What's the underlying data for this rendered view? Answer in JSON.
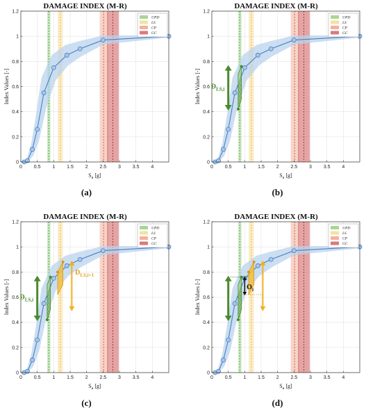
{
  "chart_data": [
    {
      "panel": "(a)",
      "type": "line",
      "title": "DAMAGE INDEX (M-R)",
      "xlabel": "S_a [g]",
      "ylabel": "Index Values [-]",
      "xlim": [
        0,
        4.5
      ],
      "ylim": [
        0,
        1.2
      ],
      "xticks": [
        "0",
        "0.5",
        "1",
        "1.5",
        "2",
        "2.5",
        "3",
        "3.5",
        "4"
      ],
      "yticks": [
        "0",
        "0.2",
        "0.4",
        "0.6",
        "0.8",
        "1",
        "1.2"
      ],
      "grid": true,
      "legend_position": "top-right",
      "series": [
        {
          "x": [
            0.1,
            0.2,
            0.35,
            0.5,
            0.7,
            1.0,
            1.4,
            1.8,
            2.5,
            4.5
          ],
          "y": [
            0.0,
            0.01,
            0.1,
            0.26,
            0.55,
            0.75,
            0.85,
            0.9,
            0.97,
            1.0
          ]
        }
      ],
      "limit_states": [
        {
          "name": "UPD",
          "color": "#8fce7a"
        },
        {
          "name": "LS",
          "color": "#f5d88a"
        },
        {
          "name": "CP",
          "color": "#ef9e86"
        },
        {
          "name": "GC",
          "color": "#cf5a5a"
        }
      ],
      "annotations": []
    },
    {
      "panel": "(b)",
      "type": "line",
      "title": "DAMAGE INDEX (M-R)",
      "xlabel": "S_a [g]",
      "ylabel": "Index Values [-]",
      "xlim": [
        0,
        4.5
      ],
      "ylim": [
        0,
        1.2
      ],
      "xticks": [
        "0",
        "0.5",
        "1",
        "1.5",
        "2",
        "2.5",
        "3",
        "3.5",
        "4"
      ],
      "yticks": [
        "0",
        "0.2",
        "0.4",
        "0.6",
        "0.8",
        "1",
        "1.2"
      ],
      "grid": true,
      "legend_position": "top-right",
      "series": [
        {
          "x": [
            0.1,
            0.2,
            0.35,
            0.5,
            0.7,
            1.0,
            1.4,
            1.8,
            2.5,
            4.5
          ],
          "y": [
            0.0,
            0.01,
            0.1,
            0.26,
            0.55,
            0.75,
            0.85,
            0.9,
            0.97,
            1.0
          ]
        }
      ],
      "limit_states": [
        {
          "name": "UPD",
          "color": "#8fce7a"
        },
        {
          "name": "LS",
          "color": "#f5d88a"
        },
        {
          "name": "CP",
          "color": "#ef9e86"
        },
        {
          "name": "GC",
          "color": "#cf5a5a"
        }
      ],
      "annotations": [
        {
          "text": "D_{LS,i}",
          "color": "#4a8a2e"
        }
      ]
    },
    {
      "panel": "(c)",
      "type": "line",
      "title": "DAMAGE INDEX (M-R)",
      "xlabel": "S_a [g]",
      "ylabel": "Index Values [-]",
      "xlim": [
        0,
        4.5
      ],
      "ylim": [
        0,
        1.2
      ],
      "xticks": [
        "0",
        "0.5",
        "1",
        "1.5",
        "2",
        "2.5",
        "3",
        "3.5",
        "4"
      ],
      "yticks": [
        "0",
        "0.2",
        "0.4",
        "0.6",
        "0.8",
        "1",
        "1.2"
      ],
      "grid": true,
      "legend_position": "top-right",
      "series": [
        {
          "x": [
            0.1,
            0.2,
            0.35,
            0.5,
            0.7,
            1.0,
            1.4,
            1.8,
            2.5,
            4.5
          ],
          "y": [
            0.0,
            0.01,
            0.1,
            0.26,
            0.55,
            0.75,
            0.85,
            0.9,
            0.97,
            1.0
          ]
        }
      ],
      "limit_states": [
        {
          "name": "UPD",
          "color": "#8fce7a"
        },
        {
          "name": "LS",
          "color": "#f5d88a"
        },
        {
          "name": "CP",
          "color": "#ef9e86"
        },
        {
          "name": "GC",
          "color": "#cf5a5a"
        }
      ],
      "annotations": [
        {
          "text": "D_{LS,i}",
          "color": "#4a8a2e"
        },
        {
          "text": "D_{LS,i+1}",
          "color": "#e0a020"
        }
      ]
    },
    {
      "panel": "(d)",
      "type": "line",
      "title": "DAMAGE INDEX (M-R)",
      "xlabel": "S_a [g]",
      "ylabel": "Index Values [-]",
      "xlim": [
        0,
        4.5
      ],
      "ylim": [
        0,
        1.2
      ],
      "xticks": [
        "0",
        "0.5",
        "1",
        "1.5",
        "2",
        "2.5",
        "3",
        "3.5",
        "4"
      ],
      "yticks": [
        "0",
        "0.2",
        "0.4",
        "0.6",
        "0.8",
        "1",
        "1.2"
      ],
      "grid": true,
      "legend_position": "top-right",
      "series": [
        {
          "x": [
            0.1,
            0.2,
            0.35,
            0.5,
            0.7,
            1.0,
            1.4,
            1.8,
            2.5,
            4.5
          ],
          "y": [
            0.0,
            0.01,
            0.1,
            0.26,
            0.55,
            0.75,
            0.85,
            0.9,
            0.97,
            1.0
          ]
        }
      ],
      "limit_states": [
        {
          "name": "UPD",
          "color": "#8fce7a"
        },
        {
          "name": "LS",
          "color": "#f5d88a"
        },
        {
          "name": "CP",
          "color": "#ef9e86"
        },
        {
          "name": "GC",
          "color": "#cf5a5a"
        }
      ],
      "annotations": [
        {
          "text": "O_i",
          "color": "#111111"
        }
      ]
    }
  ],
  "colors": {
    "line": "#4a7fc0",
    "band": "#b9d3ee",
    "upd": "#8fce7a",
    "ls": "#f5d88a",
    "cp": "#ef9e86",
    "gc": "#cf5a5a",
    "green": "#4a8a2e",
    "orange": "#f0b020"
  }
}
